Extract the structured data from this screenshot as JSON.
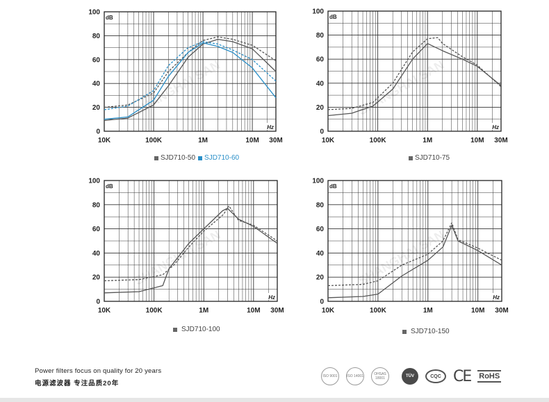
{
  "chart_data": [
    {
      "type": "line",
      "x_scale": "log",
      "x_range": [
        "10K",
        "30M"
      ],
      "ylim": [
        0,
        100
      ],
      "y_ticks": [
        "0",
        "20",
        "40",
        "60",
        "80",
        "100"
      ],
      "x_ticks": [
        "10K",
        "100K",
        "1M",
        "10M",
        "30M"
      ],
      "ylabel": "dB",
      "xlabel": "Hz",
      "legend": [
        {
          "name": "SJD710-50",
          "color": "#666666"
        },
        {
          "name": "SJD710-60",
          "color": "#2a8fc8"
        }
      ],
      "series": [
        {
          "name": "SJD710-50",
          "color": "#555555",
          "dashed": false,
          "points": [
            [
              "10K",
              9
            ],
            [
              "30K",
              11
            ],
            [
              "100K",
              22
            ],
            [
              "200K",
              38
            ],
            [
              "500K",
              62
            ],
            [
              "1M",
              73
            ],
            [
              "2M",
              77
            ],
            [
              "4M",
              75
            ],
            [
              "10M",
              69
            ],
            [
              "30M",
              50
            ]
          ]
        },
        {
          "name": "SJD710-50",
          "color": "#555555",
          "dashed": true,
          "points": [
            [
              "10K",
              20
            ],
            [
              "30K",
              22
            ],
            [
              "100K",
              32
            ],
            [
              "200K",
              50
            ],
            [
              "500K",
              66
            ],
            [
              "1M",
              76
            ],
            [
              "2M",
              79
            ],
            [
              "4M",
              77
            ],
            [
              "10M",
              72
            ],
            [
              "30M",
              59
            ]
          ]
        },
        {
          "name": "SJD710-60",
          "color": "#2a8fc8",
          "dashed": false,
          "points": [
            [
              "10K",
              10
            ],
            [
              "30K",
              12
            ],
            [
              "100K",
              26
            ],
            [
              "200K",
              46
            ],
            [
              "500K",
              66
            ],
            [
              "1M",
              74
            ],
            [
              "2M",
              71
            ],
            [
              "4M",
              66
            ],
            [
              "10M",
              53
            ],
            [
              "30M",
              28
            ]
          ]
        },
        {
          "name": "SJD710-60",
          "color": "#2a8fc8",
          "dashed": true,
          "points": [
            [
              "10K",
              18
            ],
            [
              "30K",
              21
            ],
            [
              "100K",
              34
            ],
            [
              "200K",
              55
            ],
            [
              "500K",
              70
            ],
            [
              "1M",
              75
            ],
            [
              "2M",
              73
            ],
            [
              "4M",
              68
            ],
            [
              "10M",
              60
            ],
            [
              "30M",
              42
            ]
          ]
        }
      ]
    },
    {
      "type": "line",
      "x_scale": "log",
      "x_range": [
        "10K",
        "30M"
      ],
      "ylim": [
        0,
        100
      ],
      "y_ticks": [
        "0",
        "20",
        "40",
        "60",
        "80",
        "100"
      ],
      "x_ticks": [
        "10K",
        "100K",
        "1M",
        "10M",
        "30M"
      ],
      "ylabel": "dB",
      "xlabel": "Hz",
      "legend": [
        {
          "name": "SJD710-75",
          "color": "#666666"
        }
      ],
      "series": [
        {
          "name": "SJD710-75",
          "color": "#555555",
          "dashed": false,
          "points": [
            [
              "10K",
              13
            ],
            [
              "30K",
              15
            ],
            [
              "80K",
              21
            ],
            [
              "200K",
              35
            ],
            [
              "500K",
              60
            ],
            [
              "1M",
              73
            ],
            [
              "2M",
              67
            ],
            [
              "5M",
              60
            ],
            [
              "10M",
              54
            ],
            [
              "30M",
              38
            ]
          ]
        },
        {
          "name": "SJD710-75",
          "color": "#555555",
          "dashed": true,
          "points": [
            [
              "10K",
              18
            ],
            [
              "30K",
              19
            ],
            [
              "80K",
              24
            ],
            [
              "200K",
              40
            ],
            [
              "500K",
              66
            ],
            [
              "1M",
              77
            ],
            [
              "1.6M",
              78
            ],
            [
              "2M",
              73
            ],
            [
              "5M",
              62
            ],
            [
              "10M",
              55
            ],
            [
              "30M",
              37
            ]
          ]
        }
      ]
    },
    {
      "type": "line",
      "x_scale": "log",
      "x_range": [
        "10K",
        "30M"
      ],
      "ylim": [
        0,
        100
      ],
      "y_ticks": [
        "0",
        "20",
        "40",
        "60",
        "80",
        "100"
      ],
      "x_ticks": [
        "10K",
        "100K",
        "1M",
        "10M",
        "30M"
      ],
      "ylabel": "dB",
      "xlabel": "Hz",
      "legend": [
        {
          "name": "SJD710-100",
          "color": "#666666"
        }
      ],
      "series": [
        {
          "name": "SJD710-100",
          "color": "#555555",
          "dashed": false,
          "points": [
            [
              "10K",
              7
            ],
            [
              "50K",
              8
            ],
            [
              "150K",
              13
            ],
            [
              "200K",
              27
            ],
            [
              "500K",
              48
            ],
            [
              "1M",
              60
            ],
            [
              "2.4M",
              75
            ],
            [
              "3M",
              77
            ],
            [
              "5M",
              68
            ],
            [
              "10M",
              62
            ],
            [
              "30M",
              48
            ]
          ]
        },
        {
          "name": "SJD710-100",
          "color": "#555555",
          "dashed": true,
          "points": [
            [
              "10K",
              17
            ],
            [
              "50K",
              18
            ],
            [
              "150K",
              22
            ],
            [
              "250K",
              30
            ],
            [
              "500K",
              45
            ],
            [
              "1M",
              58
            ],
            [
              "2.5M",
              72
            ],
            [
              "3.2M",
              79
            ],
            [
              "5M",
              67
            ],
            [
              "10M",
              63
            ],
            [
              "30M",
              50
            ]
          ]
        }
      ]
    },
    {
      "type": "line",
      "x_scale": "log",
      "x_range": [
        "10K",
        "30M"
      ],
      "ylim": [
        0,
        100
      ],
      "y_ticks": [
        "0",
        "20",
        "40",
        "60",
        "80",
        "100"
      ],
      "x_ticks": [
        "10K",
        "100K",
        "1M",
        "10M",
        "30M"
      ],
      "ylabel": "dB",
      "xlabel": "Hz",
      "legend": [
        {
          "name": "SJD710-150",
          "color": "#666666"
        }
      ],
      "series": [
        {
          "name": "SJD710-150",
          "color": "#555555",
          "dashed": false,
          "points": [
            [
              "10K",
              3
            ],
            [
              "50K",
              4
            ],
            [
              "100K",
              6
            ],
            [
              "300K",
              21
            ],
            [
              "1M",
              34
            ],
            [
              "2M",
              45
            ],
            [
              "3M",
              63
            ],
            [
              "4M",
              50
            ],
            [
              "10M",
              42
            ],
            [
              "30M",
              30
            ]
          ]
        },
        {
          "name": "SJD710-150",
          "color": "#555555",
          "dashed": true,
          "points": [
            [
              "10K",
              13
            ],
            [
              "50K",
              14
            ],
            [
              "100K",
              17
            ],
            [
              "300K",
              30
            ],
            [
              "1M",
              39
            ],
            [
              "2M",
              50
            ],
            [
              "3M",
              65
            ],
            [
              "4M",
              51
            ],
            [
              "10M",
              44
            ],
            [
              "30M",
              34
            ]
          ]
        }
      ]
    }
  ],
  "footer": {
    "slogan_en": "Power filters focus on quality for 20 years",
    "slogan_cn": "电源滤波器  专注品质20年",
    "certifications": [
      {
        "icon": "iso-9001-seal-icon",
        "text": "ISO 9001"
      },
      {
        "icon": "iso-14001-seal-icon",
        "text": "ISO 14001"
      },
      {
        "icon": "ohsas-18001-seal-icon",
        "text": "OHSAS 18001"
      },
      {
        "icon": "tuv-logo-icon",
        "text": "TÜV"
      },
      {
        "icon": "cqc-logo-icon",
        "text": "CQC"
      },
      {
        "icon": "ce-mark-icon",
        "text": "CE"
      },
      {
        "icon": "rohs-logo-icon",
        "text": "RoHS"
      }
    ]
  }
}
